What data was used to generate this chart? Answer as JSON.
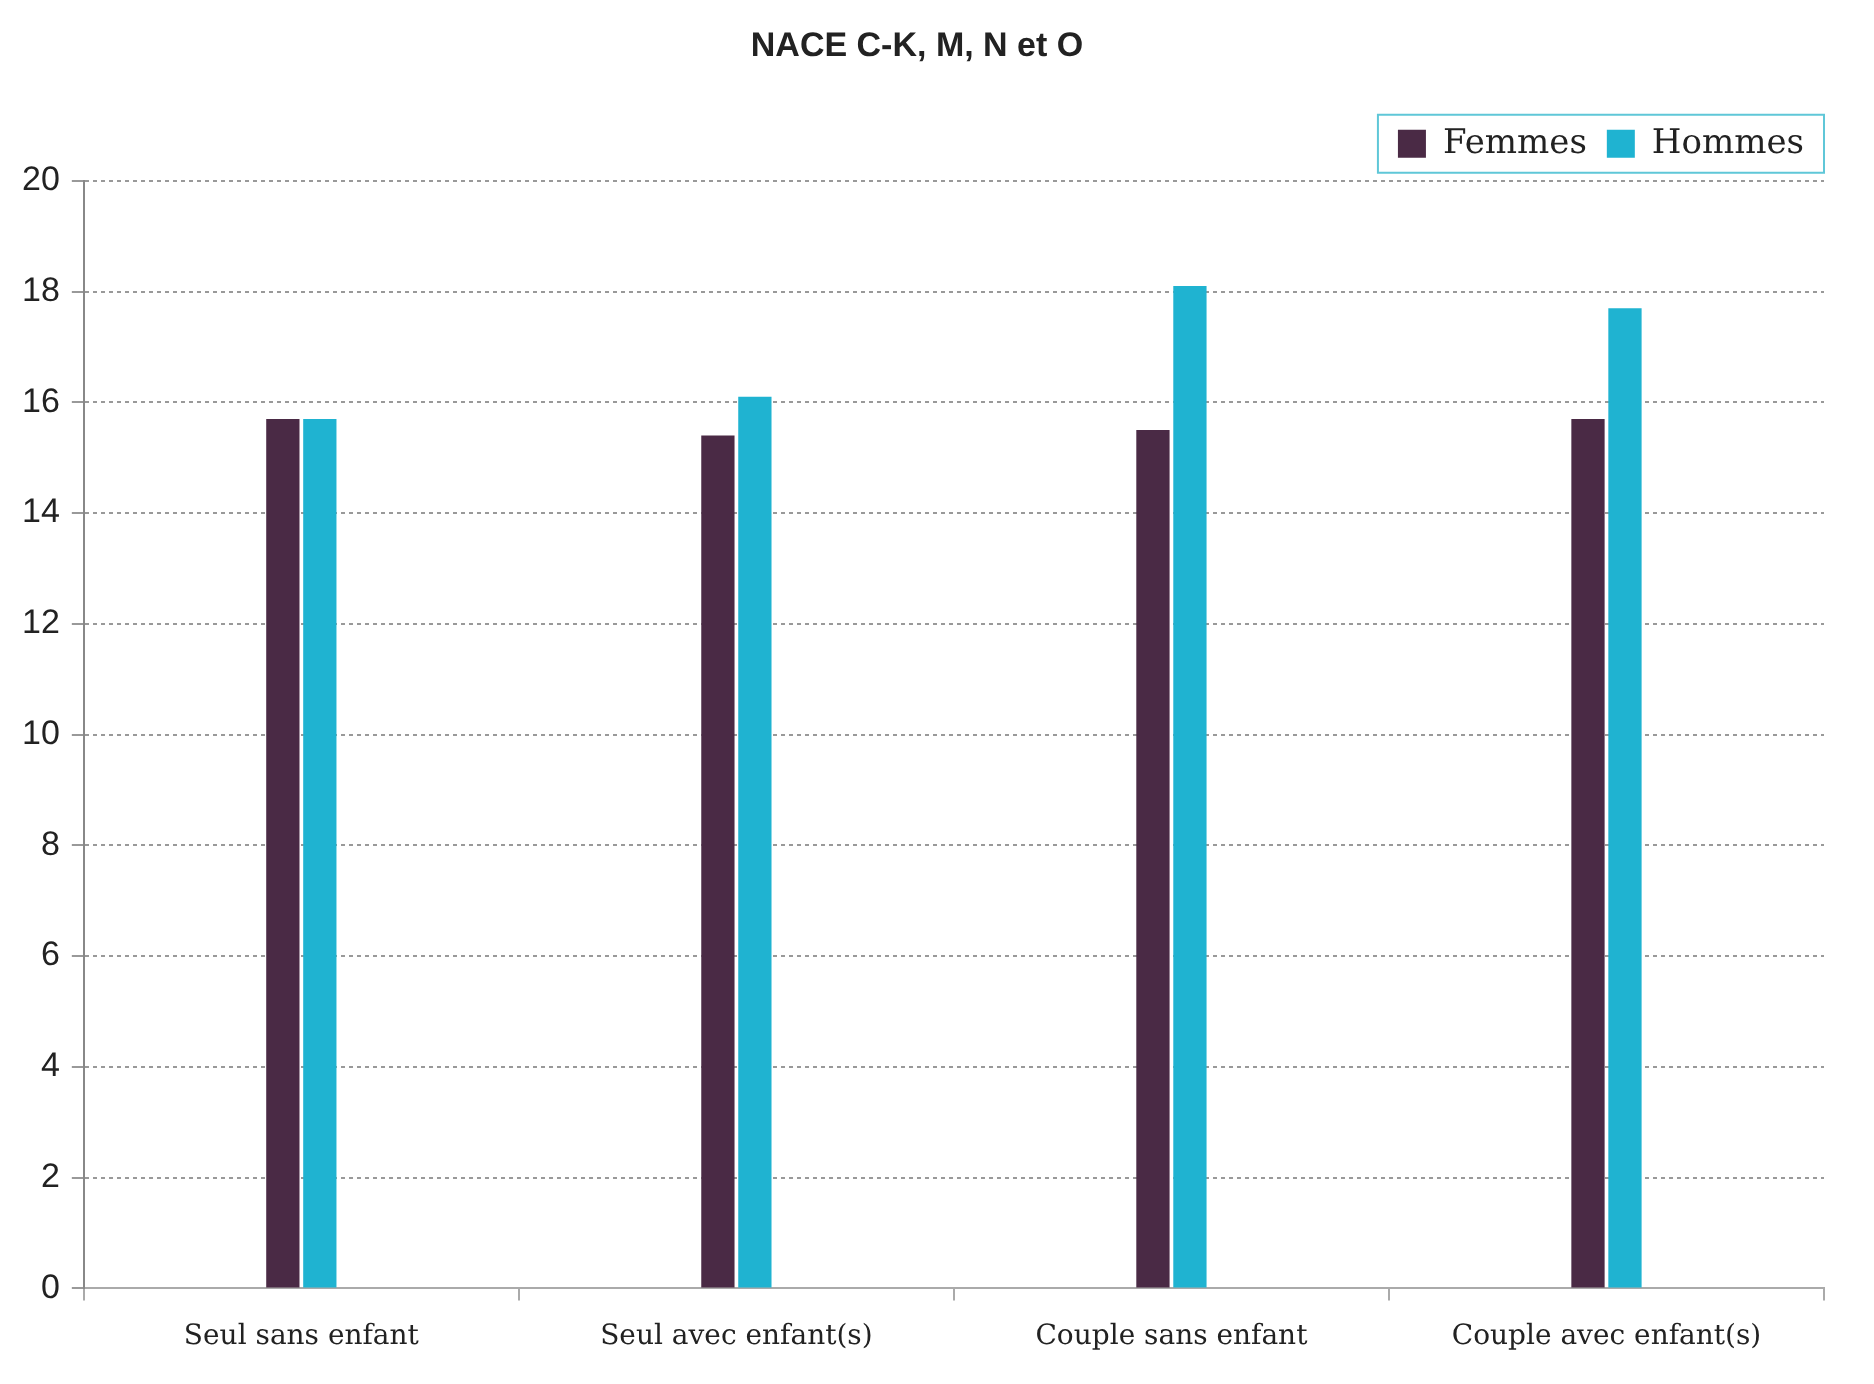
{
  "chart_data": {
    "type": "bar",
    "title": "NACE C-K, M, N et O",
    "categories": [
      "Seul sans enfant",
      "Seul avec enfant(s)",
      "Couple sans enfant",
      "Couple avec enfant(s)"
    ],
    "series": [
      {
        "name": "Femmes",
        "color": "#4a2a45",
        "values": [
          15.7,
          15.4,
          15.5,
          15.7
        ]
      },
      {
        "name": "Hommes",
        "color": "#1fb3d1",
        "values": [
          15.7,
          16.1,
          18.1,
          17.7
        ]
      }
    ],
    "ylim": [
      0,
      20
    ],
    "yticks": [
      0,
      2,
      4,
      6,
      8,
      10,
      12,
      14,
      16,
      18,
      20
    ],
    "grid": "y",
    "legend": "top right"
  }
}
